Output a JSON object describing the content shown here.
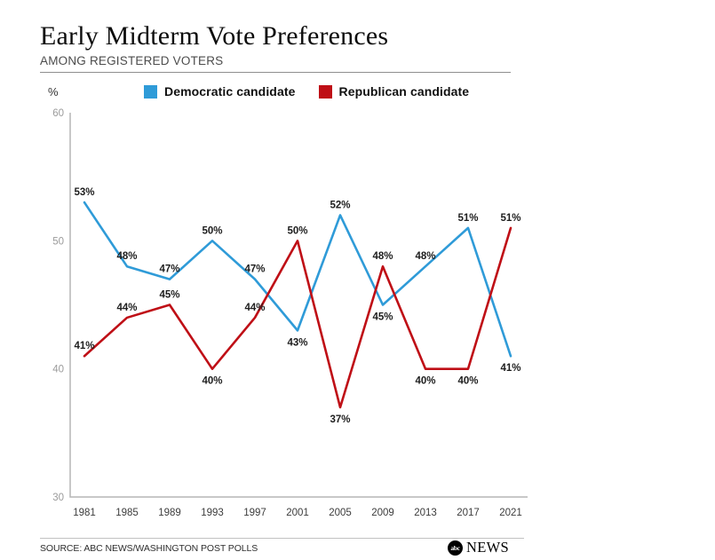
{
  "header": {
    "title": "Early Midterm Vote Preferences",
    "subtitle": "AMONG REGISTERED VOTERS"
  },
  "y_axis_unit": "%",
  "legend": {
    "democratic_label": "Democratic candidate",
    "republican_label": "Republican candidate"
  },
  "footer": {
    "source": "SOURCE: ABC NEWS/WASHINGTON POST POLLS",
    "logo_abc": "abc",
    "logo_news": "NEWS"
  },
  "colors": {
    "democratic": "#2f9bd8",
    "republican": "#bf0f16",
    "axis": "#b5b5b5",
    "y_tick_label": "#9b9b9b",
    "x_tick_label": "#3c3c3c",
    "data_label": "#1d1d1d"
  },
  "chart_data": {
    "type": "line",
    "title": "Early Midterm Vote Preferences",
    "subtitle": "AMONG REGISTERED VOTERS",
    "xlabel": "",
    "ylabel": "%",
    "ylim": [
      30,
      60
    ],
    "yticks": [
      60,
      50,
      40,
      30
    ],
    "grid": false,
    "legend_position": "top",
    "categories": [
      1981,
      1985,
      1989,
      1993,
      1997,
      2001,
      2005,
      2009,
      2013,
      2017,
      2021
    ],
    "series": [
      {
        "name": "Democratic candidate",
        "color": "#2f9bd8",
        "values": [
          53,
          48,
          47,
          50,
          47,
          43,
          52,
          45,
          48,
          51,
          41
        ],
        "labels_below_years": [
          2001,
          2009,
          2021
        ]
      },
      {
        "name": "Republican candidate",
        "color": "#bf0f16",
        "values": [
          41,
          44,
          45,
          40,
          44,
          50,
          37,
          48,
          40,
          40,
          51
        ],
        "labels_below_years": [
          1993,
          2005,
          2013,
          2017
        ]
      }
    ]
  }
}
